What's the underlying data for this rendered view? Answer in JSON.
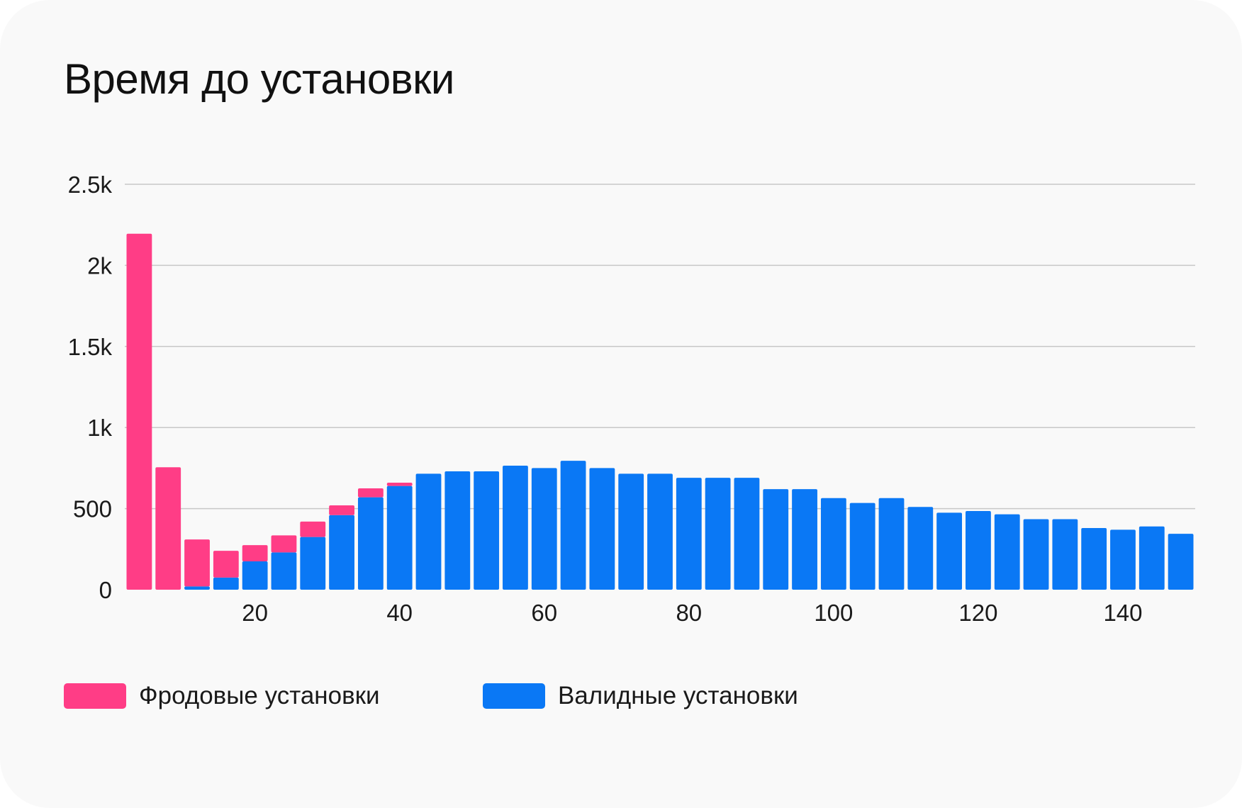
{
  "chart_data": {
    "type": "bar",
    "stacked": true,
    "title": "Время до установки",
    "xlabel": "",
    "ylabel": "",
    "x": [
      4,
      8,
      12,
      16,
      20,
      24,
      28,
      32,
      36,
      40,
      44,
      48,
      52,
      56,
      60,
      64,
      68,
      72,
      76,
      80,
      84,
      88,
      92,
      96,
      100,
      104,
      108,
      112,
      116,
      120,
      124,
      128,
      132,
      136,
      140,
      144,
      148
    ],
    "xticks": [
      20,
      40,
      60,
      80,
      100,
      120,
      140
    ],
    "xtick_labels": [
      "20",
      "40",
      "60",
      "80",
      "100",
      "120",
      "140"
    ],
    "yticks": [
      0,
      500,
      1000,
      1500,
      2000,
      2500
    ],
    "ytick_labels": [
      "0",
      "500",
      "1k",
      "1.5k",
      "2k",
      "2.5k"
    ],
    "ylim": [
      0,
      2500
    ],
    "xlim": [
      2,
      150
    ],
    "grid": true,
    "legend_position": "bottom-left",
    "series": [
      {
        "name": "Валидные установки",
        "color": "#0a78f5",
        "values": [
          0,
          0,
          20,
          75,
          175,
          230,
          325,
          460,
          570,
          640,
          715,
          730,
          730,
          765,
          750,
          795,
          750,
          715,
          715,
          690,
          690,
          690,
          620,
          620,
          565,
          535,
          565,
          510,
          475,
          485,
          465,
          435,
          435,
          380,
          370,
          390,
          345
        ]
      },
      {
        "name": "Фродовые установки",
        "color": "#ff3d86",
        "values": [
          2195,
          755,
          290,
          165,
          100,
          105,
          95,
          60,
          55,
          20,
          0,
          0,
          0,
          0,
          0,
          0,
          0,
          0,
          0,
          0,
          0,
          0,
          0,
          0,
          0,
          0,
          0,
          0,
          0,
          0,
          0,
          0,
          0,
          0,
          0,
          0,
          0
        ]
      }
    ]
  },
  "legend": {
    "fraud_label": "Фродовые установки",
    "valid_label": "Валидные установки"
  }
}
